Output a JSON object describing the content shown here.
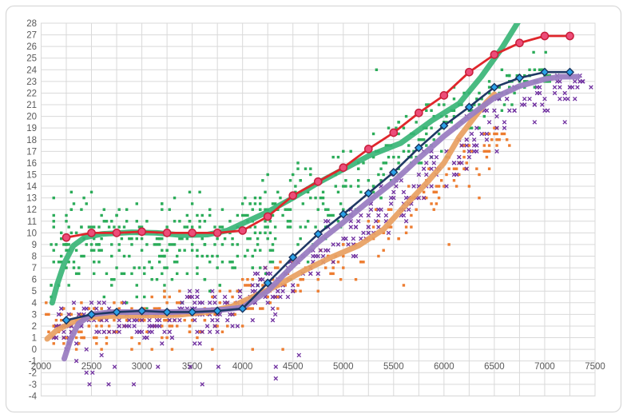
{
  "frame": {
    "background": "#ffffff",
    "border_color": "#d9d9d9",
    "plot_border_color": "#d9d9d9"
  },
  "chart_data": {
    "type": "scatter",
    "title": "",
    "legend": "none",
    "grid": true,
    "x_axis": {
      "min": 2000,
      "max": 7500,
      "label_step": 500,
      "grid_step": 250,
      "tick_labels": [
        "2000",
        "2500",
        "3000",
        "3500",
        "4000",
        "4500",
        "5000",
        "5500",
        "6000",
        "6500",
        "7000",
        "7500"
      ]
    },
    "y_axis": {
      "min": -4,
      "max": 28,
      "label_step": 1,
      "grid_step": 1,
      "tick_labels": [
        "-4",
        "-3",
        "-2",
        "-1",
        "0",
        "1",
        "2",
        "3",
        "4",
        "5",
        "6",
        "7",
        "8",
        "9",
        "10",
        "11",
        "12",
        "13",
        "14",
        "15",
        "16",
        "17",
        "18",
        "19",
        "20",
        "21",
        "22",
        "23",
        "24",
        "25",
        "26",
        "27",
        "28"
      ]
    },
    "colors": {
      "grid": "#d9d9d9",
      "ticks": "#595959",
      "green": "#2bac59",
      "orange": "#ed7d31",
      "purple": "#7030a0",
      "green_trend": "#35b474",
      "orange_trend": "#e8a061",
      "purple_trend": "#9b7ec2",
      "red_line": "#e0262b",
      "red_marker_fill": "#ec4d79",
      "red_marker_stroke": "#c81e3c",
      "navy_line": "#1f3864",
      "navy_marker_fill": "#2ba1e8",
      "navy_marker_stroke": "#17335e"
    },
    "series": [
      {
        "id": "green-scatter",
        "type": "scatter",
        "marker": "square",
        "color_key": "green",
        "cloud": {
          "count": 540,
          "seed": 11,
          "x_min": 2100,
          "x_max": 7050,
          "left_bias": 0.55,
          "left_split": 4300,
          "envelope": [
            [
              2100,
              8.75,
              4.4
            ],
            [
              3800,
              9.0,
              4.4
            ],
            [
              4300,
              10.8,
              4.2
            ],
            [
              4800,
              13.2,
              3.8
            ],
            [
              5300,
              15.6,
              3.4
            ],
            [
              5800,
              18.2,
              3.0
            ],
            [
              6300,
              20.8,
              2.5
            ],
            [
              6700,
              22.7,
              1.6
            ],
            [
              7050,
              23.6,
              0.7
            ]
          ]
        },
        "outliers": [
          [
            5330,
            24
          ],
          [
            6890,
            25.5
          ],
          [
            7010,
            25.5
          ],
          [
            6850,
            24
          ],
          [
            6950,
            24
          ],
          [
            7050,
            23.5
          ],
          [
            2300,
            13.5
          ],
          [
            2500,
            13.5
          ],
          [
            2600,
            3.5
          ],
          [
            3050,
            3.5
          ],
          [
            2850,
            4
          ],
          [
            3400,
            4
          ],
          [
            4480,
            6
          ],
          [
            4230,
            6.5
          ],
          [
            4650,
            7.5
          ],
          [
            3950,
            5
          ],
          [
            4150,
            5.5
          ]
        ]
      },
      {
        "id": "orange-scatter",
        "type": "scatter",
        "marker": "square",
        "color_key": "orange",
        "cloud": {
          "count": 310,
          "seed": 23,
          "x_min": 2060,
          "x_max": 6650,
          "left_bias": 0.52,
          "left_split": 4200,
          "envelope": [
            [
              2060,
              2.0,
              2.0
            ],
            [
              3000,
              2.3,
              2.2
            ],
            [
              3800,
              3.6,
              2.2
            ],
            [
              4400,
              5.6,
              2.3
            ],
            [
              5000,
              7.9,
              2.4
            ],
            [
              5600,
              11.3,
              2.5
            ],
            [
              6100,
              15.0,
              2.3
            ],
            [
              6500,
              17.8,
              1.8
            ],
            [
              6650,
              18.6,
              1.2
            ]
          ]
        },
        "outliers": [
          [
            6050,
            9
          ],
          [
            6350,
            13
          ],
          [
            2350,
            0
          ],
          [
            2600,
            0
          ],
          [
            2900,
            0
          ],
          [
            3100,
            0
          ],
          [
            3300,
            0
          ],
          [
            3700,
            0
          ],
          [
            4100,
            0
          ],
          [
            4400,
            0
          ],
          [
            5600,
            5.5
          ]
        ]
      },
      {
        "id": "purple-scatter",
        "type": "scatter",
        "marker": "x",
        "color_key": "purple",
        "cloud": {
          "count": 400,
          "seed": 37,
          "x_min": 2130,
          "x_max": 7400,
          "left_bias": 0.5,
          "left_split": 4400,
          "envelope": [
            [
              2130,
              1.7,
              2.2
            ],
            [
              3000,
              2.2,
              2.3
            ],
            [
              3800,
              3.2,
              2.4
            ],
            [
              4400,
              5.5,
              2.5
            ],
            [
              5000,
              10.0,
              2.6
            ],
            [
              5600,
              13.5,
              2.6
            ],
            [
              6200,
              17.5,
              2.5
            ],
            [
              6700,
              20.5,
              2.2
            ],
            [
              7100,
              22.0,
              1.6
            ],
            [
              7400,
              22.9,
              0.7
            ]
          ]
        },
        "outliers": [
          [
            2450,
            -2
          ],
          [
            2510,
            -2
          ],
          [
            2480,
            -3
          ],
          [
            2670,
            -3
          ],
          [
            2920,
            -3
          ],
          [
            3600,
            -3
          ],
          [
            2730,
            -1.5
          ],
          [
            3160,
            -1.5
          ],
          [
            3480,
            -1.5
          ],
          [
            3760,
            -1.5
          ],
          [
            4330,
            -1.5
          ],
          [
            4330,
            -2.5
          ],
          [
            4560,
            -0.5
          ],
          [
            2350,
            -1
          ],
          [
            2600,
            -0.5
          ],
          [
            7380,
            23
          ],
          [
            7460,
            22.5
          ],
          [
            7250,
            22.5
          ],
          [
            7230,
            21.5
          ],
          [
            7030,
            20.5
          ],
          [
            7200,
            19.5
          ],
          [
            6900,
            19.5
          ]
        ]
      },
      {
        "id": "green-trend",
        "type": "line",
        "color_key": "green_trend",
        "width": 7,
        "opacity": 0.9,
        "points": [
          [
            2110,
            4.0
          ],
          [
            2160,
            5.6
          ],
          [
            2230,
            7.4
          ],
          [
            2320,
            8.9
          ],
          [
            2430,
            9.6
          ],
          [
            2600,
            9.9
          ],
          [
            2900,
            10.05
          ],
          [
            3150,
            10.0
          ],
          [
            3400,
            9.8
          ],
          [
            3650,
            9.85
          ],
          [
            3850,
            10.2
          ],
          [
            4000,
            10.8
          ],
          [
            4250,
            11.8
          ],
          [
            4500,
            13.0
          ],
          [
            4750,
            14.3
          ],
          [
            5000,
            15.45
          ],
          [
            5250,
            16.6
          ],
          [
            5570,
            17.7
          ],
          [
            5890,
            19.7
          ],
          [
            6150,
            21.1
          ],
          [
            6370,
            23.4
          ],
          [
            6570,
            25.8
          ],
          [
            6700,
            27.6
          ],
          [
            6800,
            29.0
          ]
        ]
      },
      {
        "id": "orange-trend",
        "type": "line",
        "color_key": "orange_trend",
        "width": 7,
        "opacity": 0.92,
        "points": [
          [
            2060,
            0.9
          ],
          [
            2150,
            1.6
          ],
          [
            2300,
            2.3
          ],
          [
            2450,
            2.7
          ],
          [
            2650,
            2.85
          ],
          [
            3000,
            2.9
          ],
          [
            3350,
            2.95
          ],
          [
            3650,
            3.2
          ],
          [
            3900,
            3.7
          ],
          [
            4100,
            4.5
          ],
          [
            4350,
            5.5
          ],
          [
            4620,
            6.8
          ],
          [
            4880,
            7.9
          ],
          [
            5150,
            8.9
          ],
          [
            5400,
            10.3
          ],
          [
            5600,
            12.2
          ],
          [
            5840,
            14.4
          ],
          [
            6000,
            16.0
          ],
          [
            6150,
            18.2
          ],
          [
            6300,
            19.9
          ],
          [
            6420,
            21.2
          ],
          [
            6500,
            21.9
          ]
        ]
      },
      {
        "id": "purple-trend",
        "type": "line",
        "color_key": "purple_trend",
        "width": 7,
        "opacity": 0.95,
        "points": [
          [
            2230,
            -0.8
          ],
          [
            2290,
            0.8
          ],
          [
            2370,
            2.2
          ],
          [
            2500,
            3.0
          ],
          [
            2700,
            3.2
          ],
          [
            3300,
            3.2
          ],
          [
            3800,
            3.4
          ],
          [
            4000,
            3.6
          ],
          [
            4250,
            5.0
          ],
          [
            4500,
            7.2
          ],
          [
            4750,
            9.2
          ],
          [
            5000,
            10.9
          ],
          [
            5250,
            12.7
          ],
          [
            5500,
            14.4
          ],
          [
            5750,
            16.4
          ],
          [
            6000,
            18.3
          ],
          [
            6250,
            20.0
          ],
          [
            6500,
            21.6
          ],
          [
            6750,
            22.6
          ],
          [
            7000,
            23.2
          ],
          [
            7150,
            23.4
          ],
          [
            7330,
            23.4
          ]
        ]
      },
      {
        "id": "red-line",
        "type": "line-marker",
        "color_key": "red_line",
        "marker": "circle",
        "marker_fill_key": "red_marker_fill",
        "marker_stroke_key": "red_marker_stroke",
        "width": 2.8,
        "points": [
          [
            2250,
            9.6
          ],
          [
            2500,
            10.0
          ],
          [
            2750,
            10.0
          ],
          [
            3000,
            10.1
          ],
          [
            3250,
            10.0
          ],
          [
            3500,
            10.0
          ],
          [
            3750,
            10.0
          ],
          [
            4000,
            10.2
          ],
          [
            4250,
            11.4
          ],
          [
            4500,
            13.2
          ],
          [
            4750,
            14.4
          ],
          [
            5000,
            15.6
          ],
          [
            5250,
            17.2
          ],
          [
            5500,
            18.6
          ],
          [
            5750,
            20.3
          ],
          [
            6000,
            21.8
          ],
          [
            6250,
            23.8
          ],
          [
            6500,
            25.3
          ],
          [
            6750,
            26.3
          ],
          [
            7000,
            26.9
          ],
          [
            7250,
            26.9
          ]
        ]
      },
      {
        "id": "navy-line",
        "type": "line-marker",
        "color_key": "navy_line",
        "marker": "diamond",
        "marker_fill_key": "navy_marker_fill",
        "marker_stroke_key": "navy_marker_stroke",
        "width": 2.6,
        "points": [
          [
            2250,
            2.5
          ],
          [
            2500,
            3.0
          ],
          [
            2750,
            3.2
          ],
          [
            3000,
            3.3
          ],
          [
            3250,
            3.2
          ],
          [
            3500,
            3.2
          ],
          [
            3750,
            3.3
          ],
          [
            4000,
            3.5
          ],
          [
            4250,
            5.7
          ],
          [
            4500,
            7.9
          ],
          [
            4750,
            9.9
          ],
          [
            5000,
            11.6
          ],
          [
            5250,
            13.4
          ],
          [
            5500,
            15.2
          ],
          [
            5750,
            17.3
          ],
          [
            6000,
            19.2
          ],
          [
            6250,
            20.8
          ],
          [
            6500,
            22.5
          ],
          [
            6750,
            23.3
          ],
          [
            7000,
            23.8
          ],
          [
            7250,
            23.8
          ]
        ]
      }
    ]
  }
}
